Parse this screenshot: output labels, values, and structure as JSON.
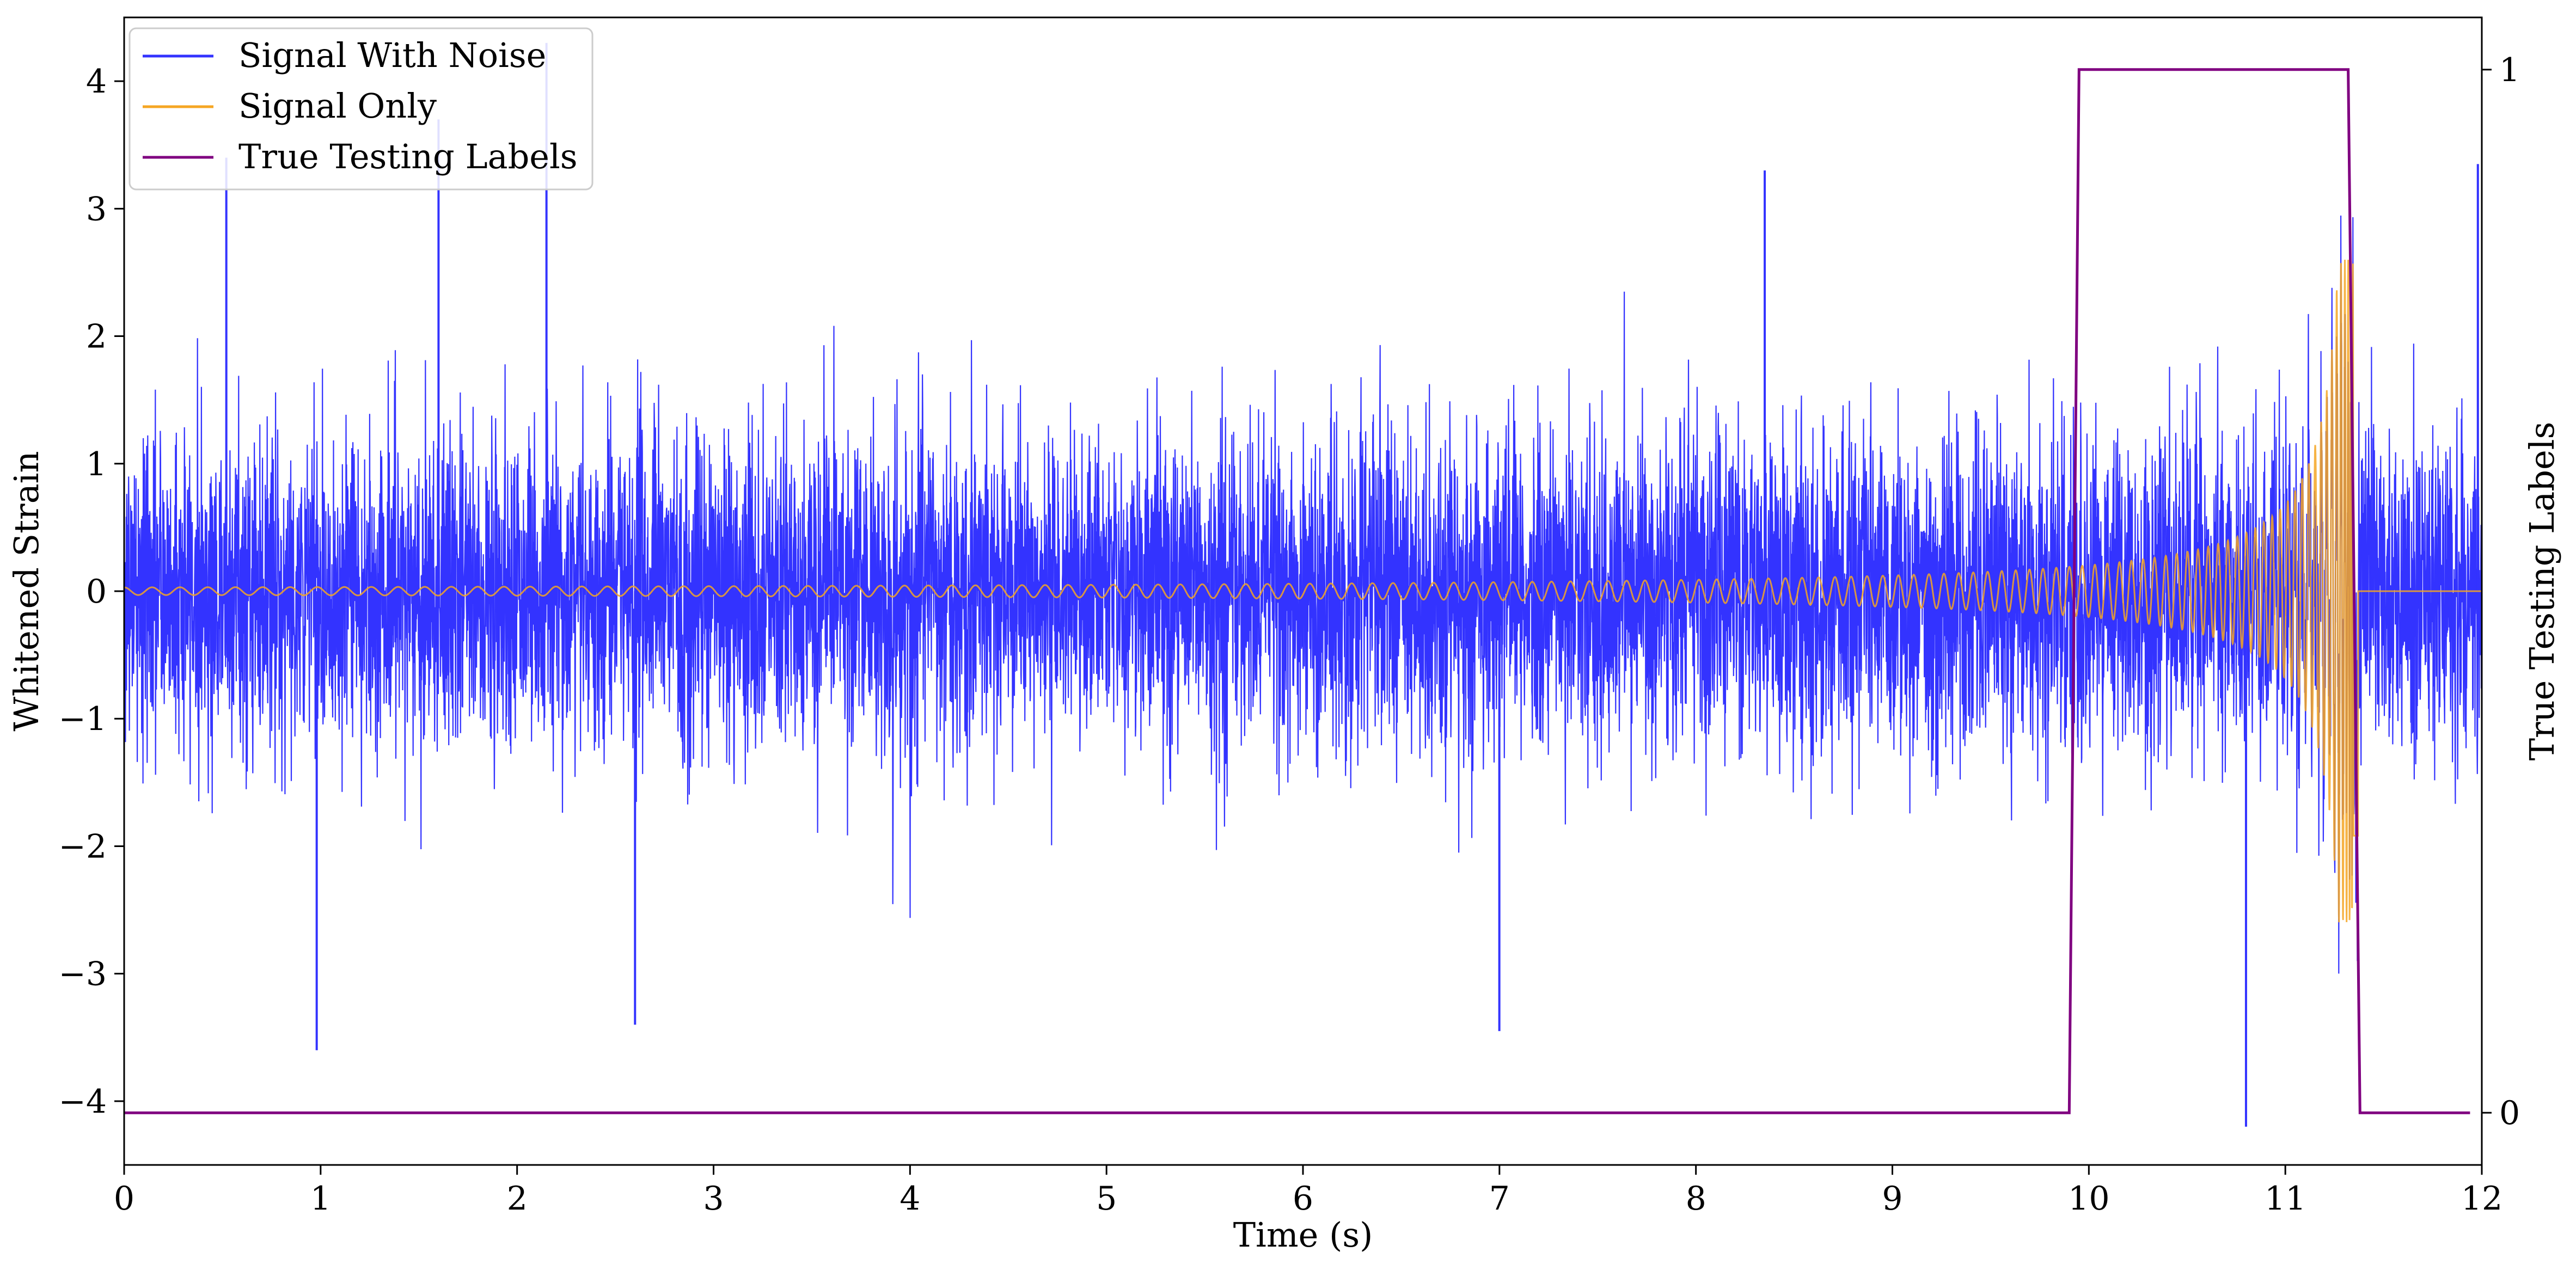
{
  "chart_data": {
    "type": "line",
    "title": "",
    "xlabel": "Time (s)",
    "ylabel": "Whitened Strain",
    "y2label": "True Testing Labels",
    "xlim": [
      0,
      12
    ],
    "ylim": [
      -4.5,
      4.5
    ],
    "y2lim": [
      -0.05,
      1.05
    ],
    "x_ticks": [
      "0",
      "1",
      "2",
      "3",
      "4",
      "5",
      "6",
      "7",
      "8",
      "9",
      "10",
      "11",
      "12"
    ],
    "y_ticks": [
      "4",
      "3",
      "2",
      "1",
      "0",
      "−1",
      "−2",
      "−3",
      "−4"
    ],
    "y2_ticks": [
      "1",
      "0"
    ],
    "grid": false,
    "legend_position": "top-left",
    "series": [
      {
        "name": "Signal With Noise",
        "color": "#3333ff",
        "axis": "left",
        "description_values": {
          "noise_std": 0.62,
          "min": -4.2,
          "max": 4.3,
          "spikes": [
            [
              0.52,
              3.4
            ],
            [
              0.98,
              -3.6
            ],
            [
              1.6,
              3.7
            ],
            [
              2.15,
              4.3
            ],
            [
              2.6,
              -3.4
            ],
            [
              7.0,
              -3.45
            ],
            [
              8.35,
              3.3
            ],
            [
              10.8,
              -4.2
            ],
            [
              11.98,
              3.35
            ]
          ]
        }
      },
      {
        "name": "Signal Only",
        "color": "#f5a623",
        "axis": "left",
        "chirp": {
          "t_merge": 11.35,
          "t_end": 11.37,
          "amplitude_start": 0.03,
          "amplitude_peak": 2.6,
          "cycles_per_second_start": 7,
          "cycles_per_second_end": 40
        }
      },
      {
        "name": "True Testing Labels",
        "color": "#800080",
        "axis": "right",
        "x": [
          0,
          9.9,
          9.95,
          11.32,
          11.38,
          11.94
        ],
        "y": [
          0,
          0,
          1,
          1,
          0,
          0
        ]
      }
    ]
  }
}
